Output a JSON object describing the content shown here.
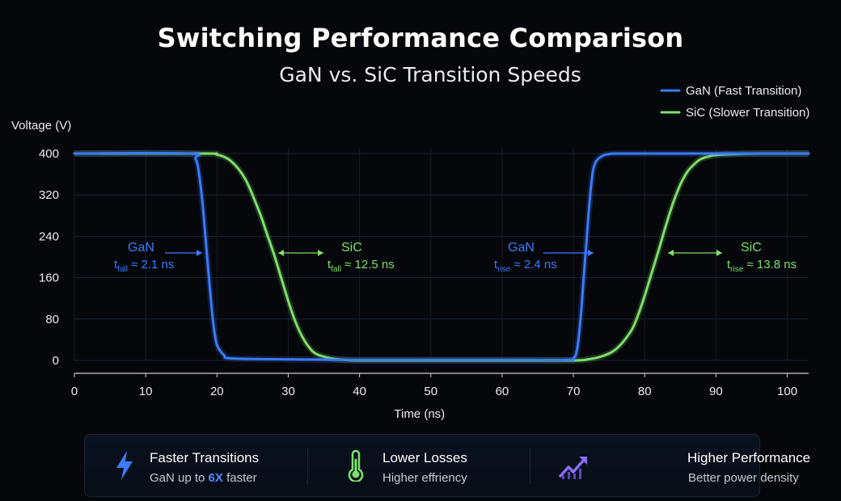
{
  "header": {
    "title": "Switching Performance Comparison",
    "subtitle": "GaN vs. SiC Transition Speeds"
  },
  "chart_data": {
    "type": "line",
    "xlabel": "Time (ns)",
    "ylabel": "Voltage (V)",
    "xlim": [
      0,
      103
    ],
    "ylim": [
      0,
      400
    ],
    "x_ticks": [
      0,
      10,
      20,
      30,
      40,
      50,
      60,
      70,
      80,
      90,
      100
    ],
    "y_ticks": [
      0,
      80,
      160,
      240,
      320,
      400
    ],
    "grid": true,
    "legend_position": "top-right",
    "series": [
      {
        "name": "GaN (Fast Transition)",
        "color": "#3b7bff",
        "x": [
          0,
          16,
          17,
          17.5,
          18,
          18.5,
          19,
          19.5,
          20,
          21,
          22,
          30,
          40,
          50,
          60,
          69,
          70,
          70.5,
          71,
          71.5,
          72,
          72.5,
          73,
          74,
          75,
          76,
          80,
          90,
          103
        ],
        "y": [
          400,
          400,
          390,
          360,
          300,
          220,
          140,
          70,
          30,
          10,
          4,
          2,
          1,
          1,
          1,
          1,
          4,
          20,
          80,
          170,
          260,
          340,
          380,
          395,
          399,
          400,
          400,
          400,
          400
        ]
      },
      {
        "name": "SiC (Slower Transition)",
        "color": "#7ee06a",
        "x": [
          0,
          18,
          20,
          22,
          24,
          26,
          27,
          28,
          29,
          30,
          31,
          32,
          33,
          34,
          36,
          38,
          40,
          50,
          60,
          70,
          72,
          74,
          76,
          78,
          79,
          80,
          81,
          82,
          83,
          84,
          85,
          86,
          87,
          88,
          90,
          93,
          96,
          103
        ],
        "y": [
          400,
          400,
          398,
          385,
          350,
          285,
          245,
          205,
          160,
          115,
          75,
          45,
          24,
          12,
          4,
          1,
          0,
          0,
          0,
          0,
          2,
          8,
          22,
          55,
          85,
          125,
          170,
          215,
          262,
          305,
          340,
          365,
          380,
          390,
          397,
          399,
          400,
          400
        ]
      }
    ],
    "annotations": [
      {
        "name": "GaN",
        "sym": "t",
        "sub": "fall",
        "value": "≈ 2.1 ns",
        "color": "#3b7bff"
      },
      {
        "name": "SiC",
        "sym": "t",
        "sub": "fall",
        "value": "≈ 12.5 ns",
        "color": "#7ee06a"
      },
      {
        "name": "GaN",
        "sym": "t",
        "sub": "rise",
        "value": "≈ 2.4 ns",
        "color": "#3b7bff"
      },
      {
        "name": "SiC",
        "sym": "t",
        "sub": "rise",
        "value": "≈ 13.8 ns",
        "color": "#7ee06a"
      }
    ]
  },
  "features": [
    {
      "title": "Faster Transitions",
      "text_prefix": "GaN up to ",
      "text_highlight": "6X",
      "text_suffix": " faster",
      "color": "#4d8cff",
      "icon": "lightning-bolt-icon"
    },
    {
      "title": "Lower Losses",
      "text": "Higher effriency",
      "color": "#7ee06a",
      "icon": "thermometer-icon"
    },
    {
      "title": "Higher Performance",
      "text": "Better power density",
      "color": "#8b6cff",
      "icon": "trend-up-icon"
    }
  ]
}
